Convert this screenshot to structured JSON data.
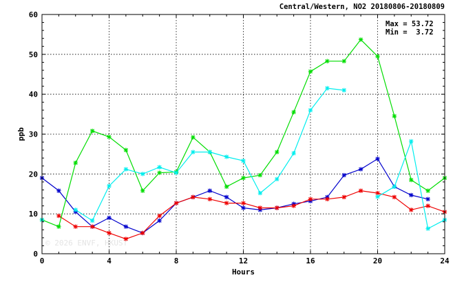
{
  "chart_data": {
    "type": "line",
    "title": "Central/Western, NO2 20180806-20180809",
    "xlabel": "Hours",
    "ylabel": "ppb",
    "xlim": [
      0,
      24
    ],
    "ylim": [
      0,
      60
    ],
    "x_ticks": [
      "0",
      "4",
      "8",
      "12",
      "16",
      "20",
      "24"
    ],
    "y_ticks": [
      "0",
      "10",
      "20",
      "30",
      "40",
      "50",
      "60"
    ],
    "grid": true,
    "annotations": {
      "max": "Max = 53.72",
      "min": "Min =  3.72"
    },
    "watermark": "© 2026 ENVF, HKUST",
    "x": [
      0,
      1,
      2,
      3,
      4,
      5,
      6,
      7,
      8,
      9,
      10,
      11,
      12,
      13,
      14,
      15,
      16,
      17,
      18,
      19,
      20,
      21,
      22,
      23,
      24
    ],
    "series": [
      {
        "color": "#0000cc",
        "values": [
          19.0,
          15.8,
          10.5,
          6.8,
          9.0,
          6.8,
          5.2,
          8.3,
          12.7,
          14.2,
          15.8,
          14.2,
          11.5,
          11.0,
          11.5,
          12.5,
          13.2,
          14.2,
          19.7,
          21.2,
          23.8,
          16.8,
          14.7,
          13.7,
          null
        ]
      },
      {
        "color": "#ee0000",
        "values": [
          null,
          9.5,
          6.8,
          6.8,
          5.2,
          3.7,
          5.2,
          9.5,
          12.7,
          14.2,
          13.7,
          12.7,
          12.7,
          11.5,
          11.5,
          12.0,
          13.7,
          13.7,
          14.2,
          15.8,
          15.2,
          14.2,
          11.0,
          12.0,
          10.5
        ]
      },
      {
        "color": "#00dd00",
        "values": [
          8.5,
          6.8,
          22.8,
          30.8,
          29.3,
          26.0,
          15.8,
          20.3,
          20.5,
          29.2,
          25.5,
          16.8,
          19.0,
          19.7,
          25.5,
          35.5,
          45.7,
          48.3,
          48.3,
          53.7,
          49.5,
          34.5,
          18.5,
          15.8,
          19.0
        ]
      },
      {
        "color": "#00eeee",
        "values": [
          8.5,
          null,
          11.0,
          8.3,
          17.0,
          21.2,
          20.0,
          21.7,
          20.3,
          25.5,
          25.5,
          24.3,
          23.3,
          15.2,
          18.7,
          25.2,
          36.0,
          41.5,
          41.0,
          null,
          14.3,
          16.8,
          28.2,
          6.3,
          8.5
        ]
      }
    ]
  }
}
